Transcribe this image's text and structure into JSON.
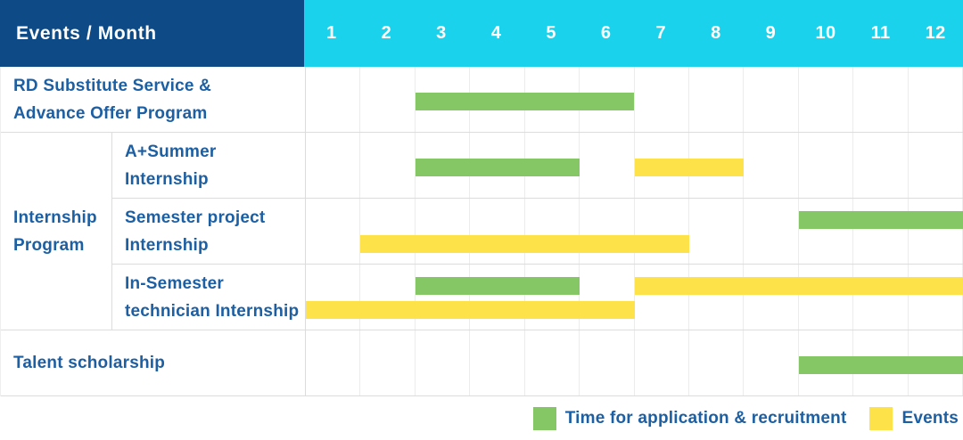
{
  "header": {
    "label_column": "Events / Month",
    "months": [
      "1",
      "2",
      "3",
      "4",
      "5",
      "6",
      "7",
      "8",
      "9",
      "10",
      "11",
      "12"
    ]
  },
  "colors": {
    "navy": "#0d4a86",
    "cyan": "#1bd2ec",
    "green": "#85c665",
    "yellow": "#fde24a",
    "blue": "#1d5fa3"
  },
  "sections": [
    {
      "kind": "row",
      "label_lines": [
        "RD Substitute Service &",
        "Advance Offer Program"
      ],
      "lanes": [
        [
          {
            "type": "application",
            "start": 3,
            "end": 6
          }
        ]
      ]
    },
    {
      "kind": "group",
      "label_lines": [
        "Internship",
        "Program"
      ],
      "rows": [
        {
          "label_lines": [
            "A+Summer",
            "Internship"
          ],
          "lanes": [
            [
              {
                "type": "application",
                "start": 3,
                "end": 5
              },
              {
                "type": "event",
                "start": 7,
                "end": 8
              }
            ]
          ]
        },
        {
          "label_lines": [
            "Semester project",
            "Internship"
          ],
          "lanes": [
            [
              {
                "type": "application",
                "start": 10,
                "end": 12
              }
            ],
            [
              {
                "type": "event",
                "start": 2,
                "end": 7
              }
            ]
          ]
        },
        {
          "label_lines": [
            "In-Semester",
            "technician Internship"
          ],
          "lanes": [
            [
              {
                "type": "application",
                "start": 3,
                "end": 5
              },
              {
                "type": "event",
                "start": 7,
                "end": 12
              }
            ],
            [
              {
                "type": "event",
                "start": 1,
                "end": 6
              }
            ]
          ]
        }
      ]
    },
    {
      "kind": "row",
      "label_lines": [
        "Talent scholarship"
      ],
      "lanes": [
        [
          {
            "type": "application",
            "start": 10,
            "end": 12
          }
        ]
      ]
    }
  ],
  "legend": {
    "items": [
      {
        "type": "application",
        "label": "Time for application & recruitment"
      },
      {
        "type": "event",
        "label": "Events"
      }
    ]
  },
  "chart_data": {
    "type": "table",
    "title": "Events / Month",
    "x_axis": {
      "label": "Month",
      "ticks": [
        1,
        2,
        3,
        4,
        5,
        6,
        7,
        8,
        9,
        10,
        11,
        12
      ],
      "range": [
        1,
        12
      ]
    },
    "grid": true,
    "legend_position": "bottom-right",
    "rows": [
      {
        "event": "RD Substitute Service & Advance Offer Program",
        "application_recruitment_months": [
          [
            3,
            6
          ]
        ],
        "events_months": []
      },
      {
        "event": "Internship Program - A+Summer Internship",
        "application_recruitment_months": [
          [
            3,
            5
          ]
        ],
        "events_months": [
          [
            7,
            8
          ]
        ]
      },
      {
        "event": "Internship Program - Semester project Internship",
        "application_recruitment_months": [
          [
            10,
            12
          ]
        ],
        "events_months": [
          [
            2,
            7
          ]
        ]
      },
      {
        "event": "Internship Program - In-Semester technician Internship",
        "application_recruitment_months": [
          [
            3,
            5
          ]
        ],
        "events_months": [
          [
            7,
            12
          ],
          [
            1,
            6
          ]
        ]
      },
      {
        "event": "Talent scholarship",
        "application_recruitment_months": [
          [
            10,
            12
          ]
        ],
        "events_months": []
      }
    ],
    "series_legend": [
      "Time for application & recruitment",
      "Events"
    ]
  }
}
